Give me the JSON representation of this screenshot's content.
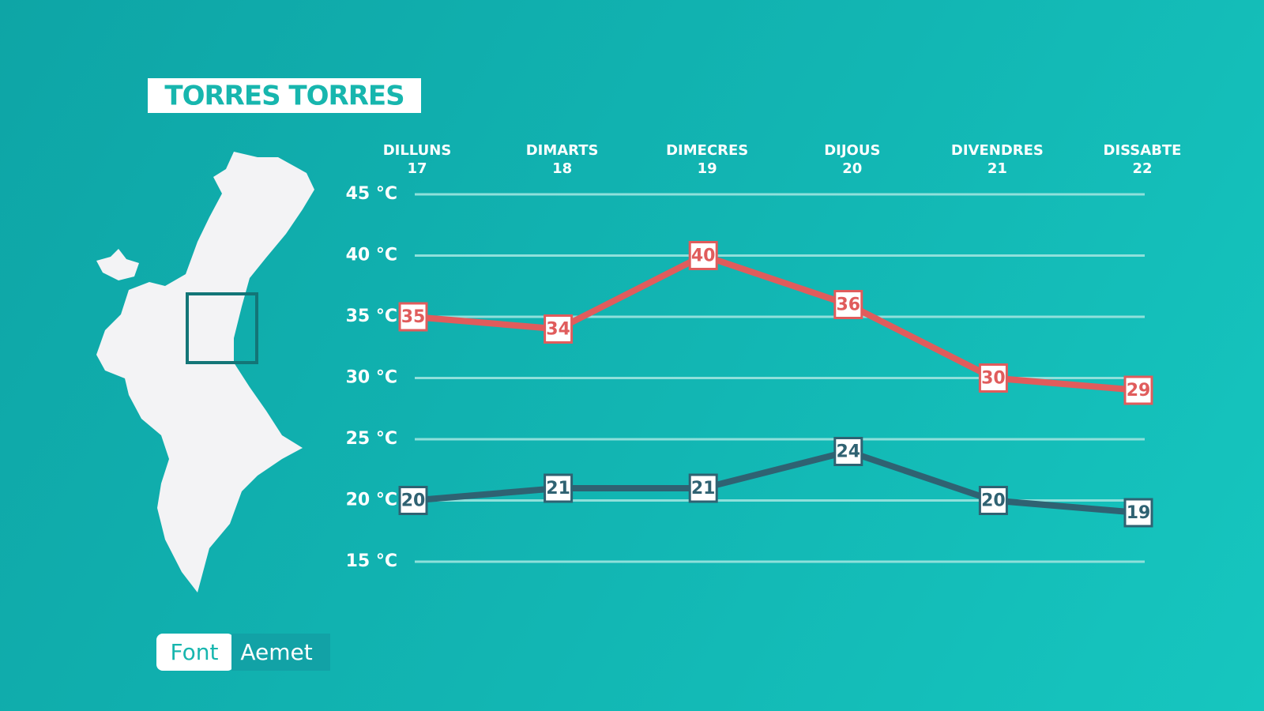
{
  "chart_data": {
    "type": "line",
    "title": "TORRES TORRES",
    "categories": [
      "DILLUNS\n17",
      "DIMARTS\n18",
      "DIMECRES\n19",
      "DIJOUS\n20",
      "DIVENDRES\n21",
      "DISSABTE\n22"
    ],
    "series": [
      {
        "color": "#e05c5c",
        "values": [
          35,
          34,
          40,
          36,
          30,
          29
        ]
      },
      {
        "color": "#2f6272",
        "values": [
          20,
          21,
          21,
          24,
          20,
          19
        ]
      }
    ],
    "ylim": [
      15,
      45
    ],
    "yticks": [
      {
        "value": 15,
        "label": "15 °C"
      },
      {
        "value": 20,
        "label": "20 °C"
      },
      {
        "value": 25,
        "label": "25 °C"
      },
      {
        "value": 30,
        "label": "30 °C"
      },
      {
        "value": 35,
        "label": "35 °C"
      },
      {
        "value": 40,
        "label": "40 °C"
      },
      {
        "value": 45,
        "label": "45 °C"
      }
    ],
    "grid": true,
    "source_label": "Font",
    "source": "Aemet"
  }
}
